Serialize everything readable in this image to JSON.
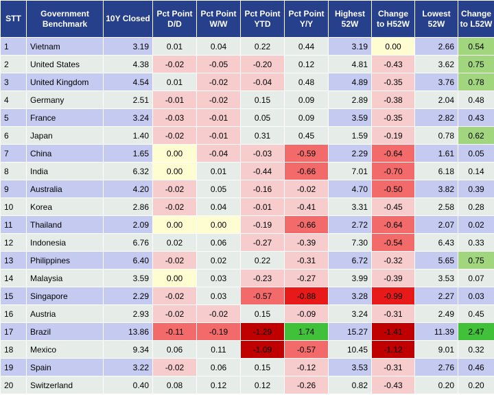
{
  "columns": [
    "STT",
    "Government Benchmark",
    "10Y Closed",
    "Pct Point D/D",
    "Pct Point W/W",
    "Pct Point YTD",
    "Pct Point Y/Y",
    "Highest 52W",
    "Change to H52W",
    "Lowest 52W",
    "Change to L52W"
  ],
  "rows": [
    {
      "stt": "1",
      "name": "Vietnam",
      "closed": "3.19",
      "dd": "0.01",
      "ww": "0.04",
      "ytd": "0.22",
      "yy": "0.44",
      "h52": "3.19",
      "ch52": "0.00",
      "l52": "2.66",
      "cl52": "0.54"
    },
    {
      "stt": "2",
      "name": "United States",
      "closed": "4.38",
      "dd": "-0.02",
      "ww": "-0.05",
      "ytd": "-0.20",
      "yy": "0.12",
      "h52": "4.81",
      "ch52": "-0.43",
      "l52": "3.62",
      "cl52": "0.75"
    },
    {
      "stt": "3",
      "name": "United Kingdom",
      "closed": "4.54",
      "dd": "0.01",
      "ww": "-0.02",
      "ytd": "-0.04",
      "yy": "0.48",
      "h52": "4.89",
      "ch52": "-0.35",
      "l52": "3.76",
      "cl52": "0.78"
    },
    {
      "stt": "4",
      "name": "Germany",
      "closed": "2.51",
      "dd": "-0.01",
      "ww": "-0.02",
      "ytd": "0.15",
      "yy": "0.09",
      "h52": "2.89",
      "ch52": "-0.38",
      "l52": "2.04",
      "cl52": "0.48"
    },
    {
      "stt": "5",
      "name": "France",
      "closed": "3.24",
      "dd": "-0.03",
      "ww": "-0.01",
      "ytd": "0.05",
      "yy": "0.09",
      "h52": "3.59",
      "ch52": "-0.35",
      "l52": "2.82",
      "cl52": "0.43"
    },
    {
      "stt": "6",
      "name": "Japan",
      "closed": "1.40",
      "dd": "-0.02",
      "ww": "-0.01",
      "ytd": "0.31",
      "yy": "0.45",
      "h52": "1.59",
      "ch52": "-0.19",
      "l52": "0.78",
      "cl52": "0.62"
    },
    {
      "stt": "7",
      "name": "China",
      "closed": "1.65",
      "dd": "0.00",
      "ww": "-0.04",
      "ytd": "-0.03",
      "yy": "-0.59",
      "h52": "2.29",
      "ch52": "-0.64",
      "l52": "1.61",
      "cl52": "0.05"
    },
    {
      "stt": "8",
      "name": "India",
      "closed": "6.32",
      "dd": "0.00",
      "ww": "0.01",
      "ytd": "-0.44",
      "yy": "-0.66",
      "h52": "7.01",
      "ch52": "-0.70",
      "l52": "6.18",
      "cl52": "0.14"
    },
    {
      "stt": "9",
      "name": "Australia",
      "closed": "4.20",
      "dd": "-0.02",
      "ww": "0.05",
      "ytd": "-0.16",
      "yy": "-0.02",
      "h52": "4.70",
      "ch52": "-0.50",
      "l52": "3.82",
      "cl52": "0.39"
    },
    {
      "stt": "10",
      "name": "Korea",
      "closed": "2.86",
      "dd": "-0.02",
      "ww": "0.04",
      "ytd": "-0.01",
      "yy": "-0.41",
      "h52": "3.31",
      "ch52": "-0.45",
      "l52": "2.58",
      "cl52": "0.28"
    },
    {
      "stt": "11",
      "name": "Thailand",
      "closed": "2.09",
      "dd": "0.00",
      "ww": "0.00",
      "ytd": "-0.19",
      "yy": "-0.66",
      "h52": "2.72",
      "ch52": "-0.64",
      "l52": "2.07",
      "cl52": "0.02"
    },
    {
      "stt": "12",
      "name": "Indonesia",
      "closed": "6.76",
      "dd": "0.02",
      "ww": "0.06",
      "ytd": "-0.27",
      "yy": "-0.39",
      "h52": "7.30",
      "ch52": "-0.54",
      "l52": "6.43",
      "cl52": "0.33"
    },
    {
      "stt": "13",
      "name": "Philippines",
      "closed": "6.40",
      "dd": "-0.02",
      "ww": "0.02",
      "ytd": "0.22",
      "yy": "-0.31",
      "h52": "6.72",
      "ch52": "-0.32",
      "l52": "5.65",
      "cl52": "0.75"
    },
    {
      "stt": "14",
      "name": "Malaysia",
      "closed": "3.59",
      "dd": "0.00",
      "ww": "0.03",
      "ytd": "-0.23",
      "yy": "-0.27",
      "h52": "3.99",
      "ch52": "-0.39",
      "l52": "3.53",
      "cl52": "0.07"
    },
    {
      "stt": "15",
      "name": "Singapore",
      "closed": "2.29",
      "dd": "-0.02",
      "ww": "0.03",
      "ytd": "-0.57",
      "yy": "-0.88",
      "h52": "3.28",
      "ch52": "-0.99",
      "l52": "2.27",
      "cl52": "0.03"
    },
    {
      "stt": "16",
      "name": "Austria",
      "closed": "2.93",
      "dd": "-0.02",
      "ww": "-0.02",
      "ytd": "0.15",
      "yy": "-0.09",
      "h52": "3.24",
      "ch52": "-0.31",
      "l52": "2.49",
      "cl52": "0.45"
    },
    {
      "stt": "17",
      "name": "Brazil",
      "closed": "13.86",
      "dd": "-0.11",
      "ww": "-0.19",
      "ytd": "-1.29",
      "yy": "1.74",
      "h52": "15.27",
      "ch52": "-1.41",
      "l52": "11.39",
      "cl52": "2.47"
    },
    {
      "stt": "18",
      "name": "Mexico",
      "closed": "9.34",
      "dd": "0.06",
      "ww": "0.11",
      "ytd": "-1.09",
      "yy": "-0.57",
      "h52": "10.45",
      "ch52": "-1.12",
      "l52": "9.01",
      "cl52": "0.32"
    },
    {
      "stt": "19",
      "name": "Spain",
      "closed": "3.22",
      "dd": "-0.02",
      "ww": "0.06",
      "ytd": "0.15",
      "yy": "-0.12",
      "h52": "3.53",
      "ch52": "-0.31",
      "l52": "2.76",
      "cl52": "0.46"
    },
    {
      "stt": "20",
      "name": "Switzerland",
      "closed": "0.40",
      "dd": "0.08",
      "ww": "0.12",
      "ytd": "0.12",
      "yy": "-0.26",
      "h52": "0.82",
      "ch52": "-0.43",
      "l52": "0.20",
      "cl52": "0.20"
    }
  ],
  "colors": {
    "header_bg": "#27408b",
    "row_odd": "#c5cbf0",
    "row_even": "#e6ede8",
    "neutral": "#fefcd1",
    "positive": "#e6ede8",
    "green_light": "#a2d67e",
    "green_strong": "#41c03a",
    "red_light": "#f6cccc",
    "red_mid": "#f36a6a",
    "red_strong": "#e81919",
    "red_dark": "#c00000"
  }
}
